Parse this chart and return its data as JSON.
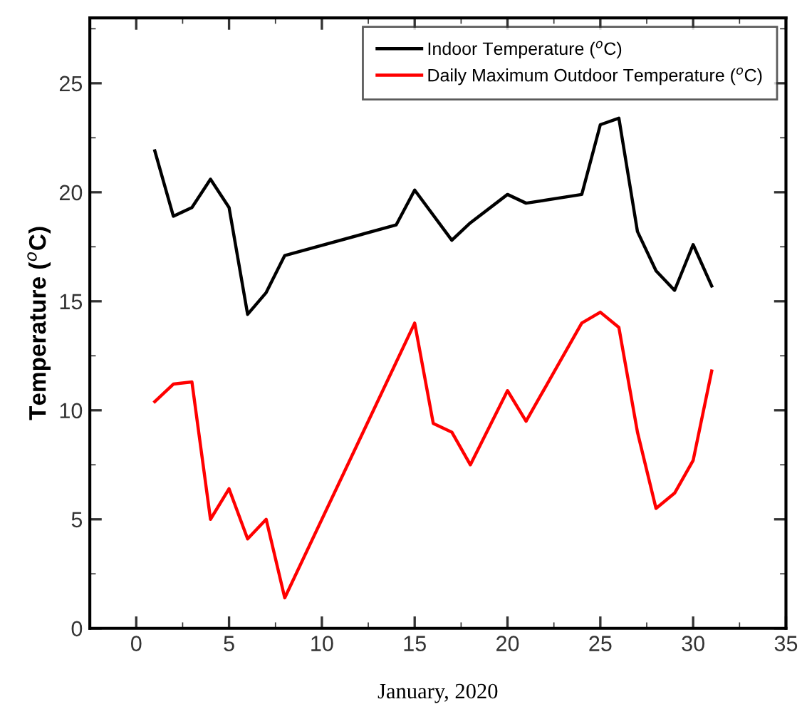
{
  "chart_data": {
    "type": "line",
    "xlabel": "January, 2020",
    "ylabel": "Temperature ($^{o}$C)",
    "xlim": [
      -2.5,
      35
    ],
    "ylim": [
      0,
      28
    ],
    "xticks": [
      0,
      5,
      10,
      15,
      20,
      25,
      30,
      35
    ],
    "yticks": [
      0,
      5,
      10,
      15,
      20,
      25
    ],
    "grid": false,
    "legend": "top right",
    "marker": "none",
    "line_style": "solid",
    "series": [
      {
        "name": "Indoor Temperature ($^{o}$C)",
        "color": "#000000",
        "x": [
          1,
          2,
          3,
          4,
          5,
          6,
          7,
          8,
          14,
          15,
          17,
          18,
          20,
          21,
          24,
          25,
          26,
          27,
          28,
          29,
          30,
          31
        ],
        "values": [
          21.9,
          18.9,
          19.3,
          20.6,
          19.3,
          14.4,
          15.4,
          17.1,
          18.5,
          20.1,
          17.8,
          18.6,
          19.9,
          19.5,
          19.9,
          23.1,
          23.4,
          18.2,
          16.4,
          15.5,
          17.6,
          15.7
        ]
      },
      {
        "name": "Daily Maximum Outdoor Temperature ($^{o}$C)",
        "color": "#ff0000",
        "x": [
          1,
          2,
          3,
          4,
          5,
          6,
          7,
          8,
          15,
          16,
          17,
          18,
          20,
          21,
          24,
          25,
          26,
          27,
          28,
          29,
          30,
          31
        ],
        "values": [
          10.4,
          11.2,
          11.3,
          5.0,
          6.4,
          4.1,
          5.0,
          1.4,
          14.0,
          9.4,
          9.0,
          7.5,
          10.9,
          9.5,
          14.0,
          14.5,
          13.8,
          9.0,
          5.5,
          6.2,
          7.7,
          11.8
        ]
      }
    ]
  }
}
